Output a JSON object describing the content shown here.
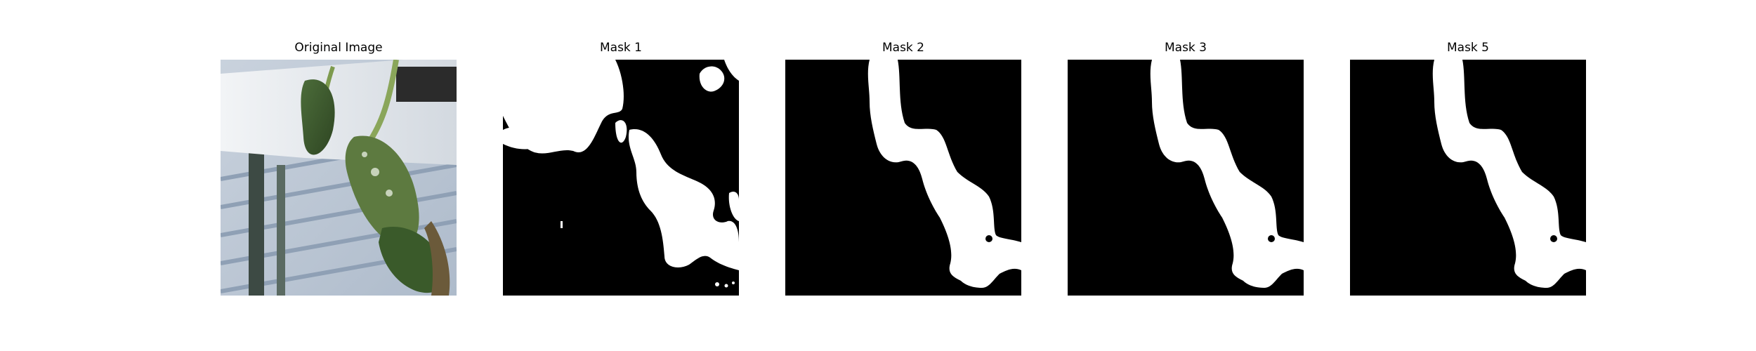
{
  "figure": {
    "panels": [
      {
        "title": "Original Image"
      },
      {
        "title": "Mask 1"
      },
      {
        "title": "Mask 2"
      },
      {
        "title": "Mask 3"
      },
      {
        "title": "Mask 5"
      }
    ]
  },
  "colors": {
    "background": "#ffffff",
    "mask_background": "#000000",
    "mask_foreground": "#ffffff"
  }
}
